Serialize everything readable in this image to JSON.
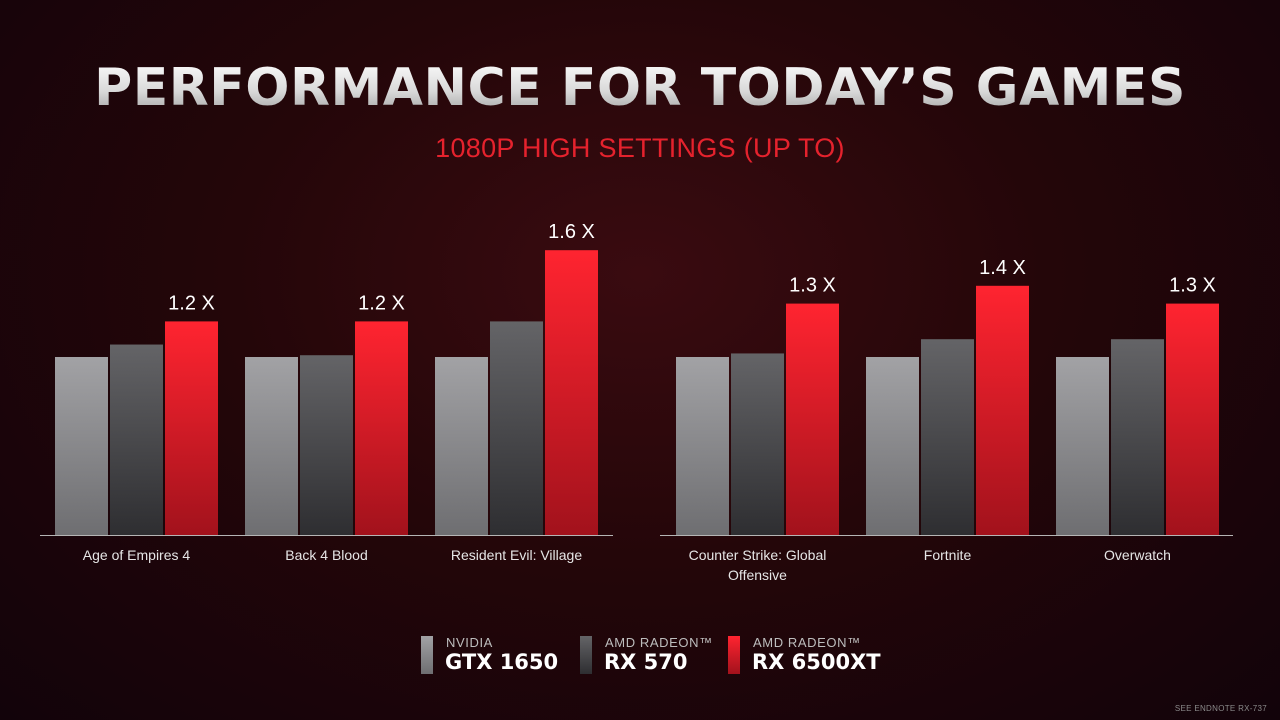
{
  "title": "PERFORMANCE FOR TODAY’S GAMES",
  "subtitle": "1080P HIGH SETTINGS (UP TO)",
  "colors": {
    "gtx1650": "#8c8c8e",
    "rx570": "#58585b",
    "rx6500xt": "#e01e2b",
    "subtitle": "#e5222d"
  },
  "legend": [
    {
      "brand": "NVIDIA",
      "model": "GTX 1650",
      "color_key": "gtx1650"
    },
    {
      "brand": "AMD RADEON™",
      "model": "RX 570",
      "color_key": "rx570"
    },
    {
      "brand": "AMD RADEON™",
      "model": "RX 6500XT",
      "color_key": "rx6500xt"
    }
  ],
  "chart_data": [
    {
      "type": "bar",
      "categories": [
        "Age of Empires 4",
        "Back 4 Blood",
        "Resident Evil: Village"
      ],
      "series": [
        {
          "name": "GTX 1650",
          "values": [
            1.0,
            1.0,
            1.0
          ]
        },
        {
          "name": "RX 570",
          "values": [
            1.07,
            1.01,
            1.2
          ]
        },
        {
          "name": "RX 6500XT",
          "values": [
            1.2,
            1.2,
            1.6
          ]
        }
      ],
      "data_labels": [
        "1.2 X",
        "1.2 X",
        "1.6 X"
      ],
      "ylim": [
        0,
        1.6
      ]
    },
    {
      "type": "bar",
      "categories": [
        "Counter Strike: Global Offensive",
        "Fortnite",
        "Overwatch"
      ],
      "series": [
        {
          "name": "GTX 1650",
          "values": [
            1.0,
            1.0,
            1.0
          ]
        },
        {
          "name": "RX 570",
          "values": [
            1.02,
            1.1,
            1.1
          ]
        },
        {
          "name": "RX 6500XT",
          "values": [
            1.3,
            1.4,
            1.3
          ]
        }
      ],
      "data_labels": [
        "1.3 X",
        "1.4 X",
        "1.3 X"
      ],
      "ylim": [
        0,
        1.4
      ]
    }
  ],
  "endnote": "SEE ENDNOTE RX-737"
}
